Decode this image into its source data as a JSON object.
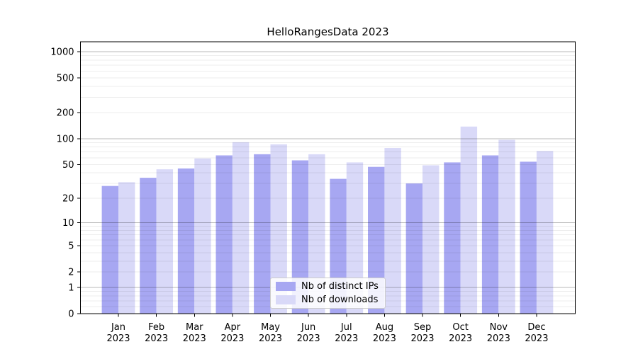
{
  "title": "HelloRangesData 2023",
  "chart_data": {
    "type": "bar",
    "title": "HelloRangesData 2023",
    "xlabel": "",
    "ylabel": "",
    "yscale": "symlog-like (log1p)",
    "grid": "horizontal major+minor, drawn over bars",
    "categories": [
      "Jan",
      "Feb",
      "Mar",
      "Apr",
      "May",
      "Jun",
      "Jul",
      "Aug",
      "Sep",
      "Oct",
      "Nov",
      "Dec"
    ],
    "year_label": "2023",
    "series": [
      {
        "name": "Nb of distinct IPs",
        "color": "#a7a7f2",
        "values": [
          28,
          35,
          45,
          64,
          66,
          56,
          34,
          47,
          30,
          53,
          64,
          54
        ]
      },
      {
        "name": "Nb of downloads",
        "color": "#d9d9f8",
        "values": [
          31,
          44,
          59,
          91,
          86,
          66,
          53,
          78,
          49,
          138,
          97,
          72
        ]
      }
    ],
    "y_ticks": [
      0,
      1,
      2,
      5,
      10,
      20,
      50,
      100,
      200,
      500,
      1000
    ],
    "y_tick_labels": [
      "0",
      "1",
      "2",
      "5",
      "10",
      "20",
      "50",
      "100",
      "200",
      "500",
      "1000"
    ],
    "y_major_gridlines": [
      1,
      10,
      100,
      1000
    ],
    "y_minor_gridlines": [
      0.2,
      0.4,
      0.6,
      0.8,
      2,
      3,
      4,
      5,
      6,
      7,
      8,
      9,
      20,
      30,
      40,
      50,
      60,
      70,
      80,
      90,
      200,
      300,
      400,
      500,
      600,
      700,
      800,
      900
    ],
    "ylim": [
      0,
      1300
    ],
    "legend": {
      "position": "lower center",
      "labels": [
        "Nb of distinct IPs",
        "Nb of downloads"
      ]
    }
  }
}
